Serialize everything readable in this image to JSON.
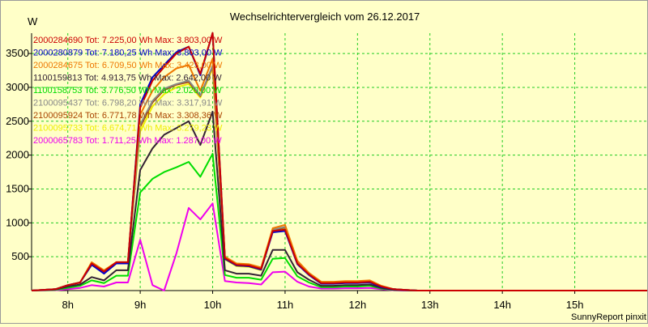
{
  "chart_data": {
    "type": "line",
    "title": "Wechselrichtervergleich vom 26.12.2017",
    "ylabel": "W",
    "xlabel": "",
    "credit": "SunnyReport pinxit",
    "ylim": [
      0,
      3800
    ],
    "xlim": [
      7.5,
      16.0
    ],
    "grid": true,
    "legend_position": "top-left",
    "x_ticks": [
      {
        "value": 8,
        "label": "8h"
      },
      {
        "value": 9,
        "label": "9h"
      },
      {
        "value": 10,
        "label": "10h"
      },
      {
        "value": 11,
        "label": "11h"
      },
      {
        "value": 12,
        "label": "12h"
      },
      {
        "value": 13,
        "label": "13h"
      },
      {
        "value": 14,
        "label": "14h"
      },
      {
        "value": 15,
        "label": "15h"
      }
    ],
    "y_ticks": [
      500,
      1000,
      1500,
      2000,
      2500,
      3000,
      3500
    ],
    "x": [
      7.5,
      7.83,
      8.0,
      8.17,
      8.33,
      8.5,
      8.67,
      8.83,
      9.0,
      9.17,
      9.33,
      9.5,
      9.67,
      9.83,
      10.0,
      10.17,
      10.33,
      10.5,
      10.67,
      10.83,
      11.0,
      11.17,
      11.33,
      11.5,
      11.67,
      11.83,
      12.0,
      12.17,
      12.33,
      12.5,
      12.67,
      12.83,
      13.0,
      13.17,
      13.33,
      13.5,
      13.67,
      13.83,
      14.0,
      14.17,
      14.33,
      14.5,
      14.67,
      14.83,
      15.0,
      15.17,
      15.33,
      15.5,
      15.67,
      15.83,
      16.0
    ],
    "series": [
      {
        "name": "2000284690",
        "legend": "2000284690 Tot: 7.225,00 Wh Max: 3.803,00 W",
        "color": "#cc0000",
        "values": [
          0,
          20,
          80,
          120,
          400,
          280,
          420,
          420,
          2700,
          3100,
          3300,
          3500,
          3600,
          3200,
          3803,
          480,
          380,
          370,
          320,
          880,
          900,
          400,
          240,
          110,
          110,
          120,
          120,
          130,
          60,
          20,
          10,
          0,
          0,
          0,
          0,
          0,
          0,
          0,
          0,
          0,
          0,
          0,
          0,
          0,
          0,
          0,
          0,
          0,
          0,
          0,
          0
        ]
      },
      {
        "name": "2000280879",
        "legend": "2000280879 Tot: 7.180,25 Wh Max: 3.803,00 W",
        "color": "#0000cc",
        "values": [
          0,
          20,
          80,
          120,
          380,
          250,
          400,
          400,
          2750,
          3150,
          3330,
          3520,
          3600,
          3180,
          3803,
          470,
          370,
          360,
          310,
          860,
          880,
          390,
          230,
          100,
          100,
          110,
          110,
          120,
          50,
          20,
          10,
          0,
          0,
          0,
          0,
          0,
          0,
          0,
          0,
          0,
          0,
          0,
          0,
          0,
          0,
          0,
          0,
          0,
          0,
          0,
          0
        ]
      },
      {
        "name": "2000284675",
        "legend": "2000284675 Tot: 6.709,50 Wh Max: 3.423,00 W",
        "color": "#ee7700",
        "values": [
          0,
          20,
          80,
          120,
          420,
          300,
          420,
          420,
          2600,
          2950,
          3150,
          3280,
          3330,
          2950,
          3423,
          500,
          400,
          390,
          340,
          920,
          970,
          440,
          260,
          130,
          130,
          140,
          140,
          150,
          70,
          20,
          10,
          0,
          0,
          0,
          0,
          0,
          0,
          0,
          0,
          0,
          0,
          0,
          0,
          0,
          0,
          0,
          0,
          0,
          0,
          0,
          0
        ]
      },
      {
        "name": "1100159813",
        "legend": "1100159813 Tot: 4.913,75 Wh Max: 2.642,00 W",
        "color": "#332233",
        "values": [
          0,
          15,
          60,
          90,
          200,
          150,
          300,
          300,
          1780,
          2100,
          2300,
          2400,
          2500,
          2150,
          2642,
          300,
          250,
          250,
          220,
          600,
          600,
          270,
          160,
          70,
          70,
          80,
          80,
          90,
          40,
          10,
          5,
          0,
          0,
          0,
          0,
          0,
          0,
          0,
          0,
          0,
          0,
          0,
          0,
          0,
          0,
          0,
          0,
          0,
          0,
          0,
          0
        ]
      },
      {
        "name": "1100158753",
        "legend": "1100158753 Tot: 3.776,50 Wh Max: 2.020,00 W",
        "color": "#00dd00",
        "values": [
          0,
          10,
          40,
          70,
          150,
          110,
          220,
          220,
          1450,
          1650,
          1750,
          1820,
          1900,
          1680,
          2020,
          230,
          190,
          190,
          160,
          470,
          480,
          210,
          120,
          50,
          50,
          60,
          60,
          70,
          30,
          10,
          5,
          0,
          0,
          0,
          0,
          0,
          0,
          0,
          0,
          0,
          0,
          0,
          0,
          0,
          0,
          0,
          0,
          0,
          0,
          0,
          0
        ]
      },
      {
        "name": "2100095437",
        "legend": "2100095437 Tot: 6.798,20 Wh Max: 3.317,91 W",
        "color": "#888888",
        "values": [
          0,
          20,
          80,
          120,
          390,
          270,
          410,
          410,
          2450,
          2800,
          2980,
          3050,
          3100,
          2880,
          3318,
          480,
          380,
          370,
          320,
          900,
          940,
          420,
          250,
          120,
          120,
          130,
          130,
          140,
          60,
          20,
          10,
          0,
          0,
          0,
          0,
          0,
          0,
          0,
          0,
          0,
          0,
          0,
          0,
          0,
          0,
          0,
          0,
          0,
          0,
          0,
          0
        ]
      },
      {
        "name": "2100095924",
        "legend": "2100095924 Tot: 6.771,78 Wh Max: 3.308,36 W",
        "color": "#aa4400",
        "values": [
          0,
          20,
          80,
          120,
          390,
          270,
          410,
          410,
          2420,
          2780,
          2960,
          3040,
          3080,
          2870,
          3308,
          470,
          370,
          360,
          310,
          890,
          930,
          410,
          250,
          120,
          120,
          130,
          130,
          140,
          60,
          20,
          10,
          0,
          0,
          0,
          0,
          0,
          0,
          0,
          0,
          0,
          0,
          0,
          0,
          0,
          0,
          0,
          0,
          0,
          0,
          0,
          0
        ]
      },
      {
        "name": "2100095733",
        "legend": "2100095733 Tot: 6.674,71 Wh Max: 3.279,23 W",
        "color": "#eeee00",
        "values": [
          0,
          20,
          80,
          120,
          380,
          260,
          400,
          400,
          2350,
          2720,
          2900,
          3000,
          3050,
          2850,
          3279,
          460,
          360,
          350,
          300,
          880,
          920,
          400,
          240,
          110,
          110,
          120,
          120,
          130,
          60,
          20,
          10,
          0,
          0,
          0,
          0,
          0,
          0,
          0,
          0,
          0,
          0,
          0,
          0,
          0,
          0,
          0,
          0,
          0,
          0,
          0,
          0
        ]
      },
      {
        "name": "2000065783",
        "legend": "2000065783 Tot: 1.711,25 Wh Max: 1.287,00 W",
        "color": "#ee00ee",
        "values": [
          0,
          5,
          20,
          40,
          80,
          60,
          120,
          120,
          750,
          80,
          0,
          550,
          1220,
          1050,
          1287,
          140,
          120,
          110,
          90,
          270,
          280,
          130,
          60,
          30,
          30,
          35,
          35,
          40,
          20,
          5,
          0,
          0,
          0,
          0,
          0,
          0,
          0,
          0,
          0,
          0,
          0,
          0,
          0,
          0,
          0,
          0,
          0,
          0,
          0,
          0,
          0
        ]
      }
    ]
  }
}
